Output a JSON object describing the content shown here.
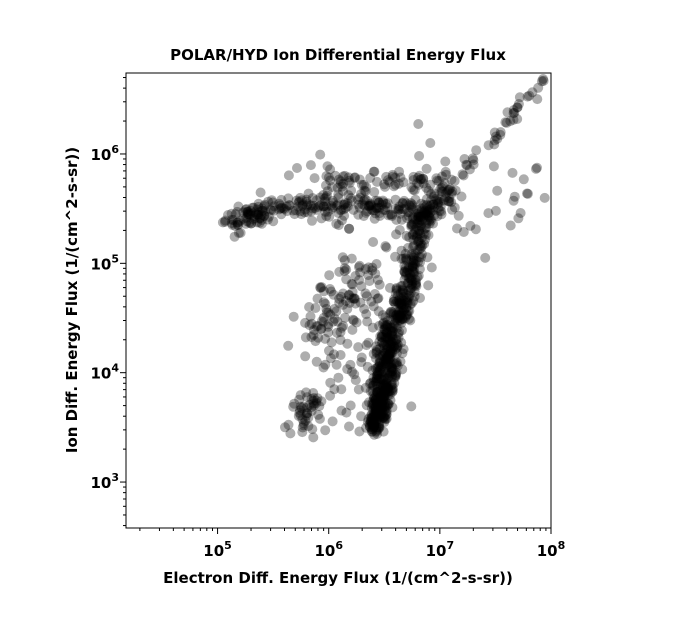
{
  "chart_data": {
    "type": "scatter",
    "title": "POLAR/HYD  Ion Differential Energy Flux",
    "xlabel": "Electron Diff. Energy Flux (1/(cm^2-s-sr))",
    "ylabel": "Ion Diff. Energy Flux (1/(cm^2-s-sr))",
    "xscale": "log",
    "yscale": "log",
    "xlim": [
      15000,
      100000000
    ],
    "ylim": [
      380,
      5500000
    ],
    "grid": false,
    "x_major_ticks": [
      {
        "base": "10",
        "exp": "5",
        "value": 100000
      },
      {
        "base": "10",
        "exp": "6",
        "value": 1000000
      },
      {
        "base": "10",
        "exp": "7",
        "value": 10000000
      },
      {
        "base": "10",
        "exp": "8",
        "value": 100000000
      }
    ],
    "y_major_ticks": [
      {
        "base": "10",
        "exp": "3",
        "value": 1000
      },
      {
        "base": "10",
        "exp": "4",
        "value": 10000
      },
      {
        "base": "10",
        "exp": "5",
        "value": 100000
      },
      {
        "base": "10",
        "exp": "6",
        "value": 1000000
      }
    ],
    "marker_color": "#000000",
    "marker_opacity": 0.32,
    "point_groups": [
      {
        "x": [
          120000,
          10000000
        ],
        "y": [
          235000,
          240000
        ],
        "curve": 0,
        "spread": 0.04,
        "count": 2
      },
      {
        "x": [
          120000,
          300000
        ],
        "y": [
          230000,
          300000
        ],
        "curve": 0,
        "spread": 0.05,
        "count": 70
      },
      {
        "x": [
          300000,
          2000000
        ],
        "y": [
          330000,
          330000
        ],
        "curve": 0,
        "spread": 0.06,
        "count": 90
      },
      {
        "x": [
          2000000,
          6500000
        ],
        "y": [
          330000,
          310000
        ],
        "curve": 0,
        "spread": 0.04,
        "count": 60
      },
      {
        "x": [
          1000000,
          9000000
        ],
        "y": [
          470000,
          600000
        ],
        "curve": 0,
        "spread": 0.07,
        "count": 50
      },
      {
        "x": [
          800000,
          1500000
        ],
        "y": [
          800000,
          300000
        ],
        "curve": 0,
        "spread": 0.12,
        "count": 30
      },
      {
        "x": [
          2700000,
          7000000
        ],
        "y": [
          3000,
          300000
        ],
        "curve": 0,
        "spread": 0.045,
        "count": 420
      },
      {
        "x": [
          2600000,
          3300000
        ],
        "y": [
          3000,
          30000
        ],
        "curve": 0,
        "spread": 0.04,
        "count": 160
      },
      {
        "x": [
          6000000,
          13000000
        ],
        "y": [
          250000,
          450000
        ],
        "curve": 0,
        "spread": 0.06,
        "count": 70
      },
      {
        "x": [
          13000000,
          85000000
        ],
        "y": [
          500000,
          4800000
        ],
        "curve": 0,
        "spread": 0.03,
        "count": 40
      },
      {
        "x": [
          800000,
          2000000
        ],
        "y": [
          15000,
          80000
        ],
        "curve": 0,
        "spread": 0.15,
        "count": 110
      },
      {
        "x": [
          550000,
          800000
        ],
        "y": [
          3500,
          6000
        ],
        "curve": 0,
        "spread": 0.07,
        "count": 45
      },
      {
        "x": [
          1500000,
          3000000
        ],
        "y": [
          4000,
          80000
        ],
        "curve": 0,
        "spread": 0.2,
        "count": 60
      },
      {
        "x": [
          12000000,
          80000000
        ],
        "y": [
          200000,
          500000
        ],
        "curve": 0,
        "spread": 0.18,
        "count": 25
      },
      {
        "x": [
          4000000,
          12000000
        ],
        "y": [
          200000,
          700000
        ],
        "curve": 0,
        "spread": 0.18,
        "count": 35
      }
    ]
  }
}
